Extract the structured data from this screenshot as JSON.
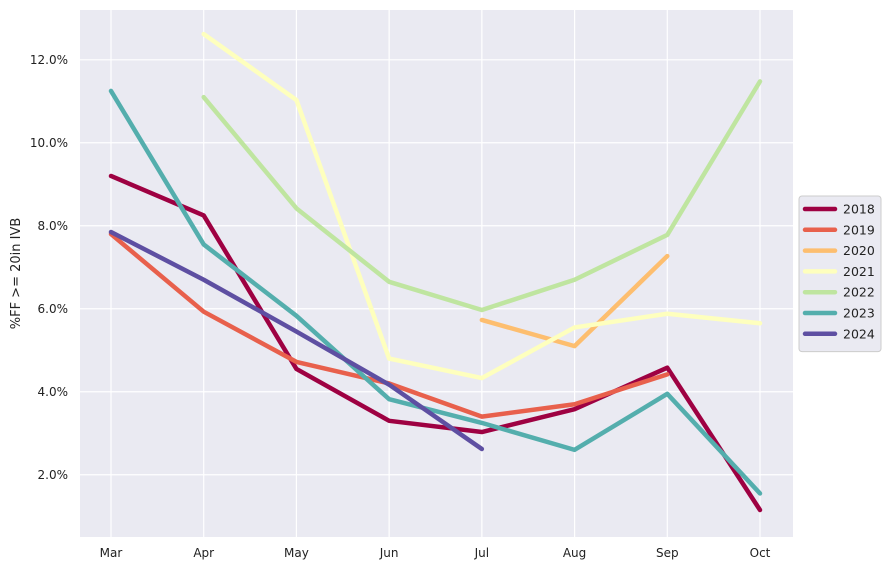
{
  "chart_data": {
    "type": "line",
    "title": "",
    "xlabel": "",
    "ylabel": "%FF >= 20in IVB",
    "categories": [
      "Mar",
      "Apr",
      "May",
      "Jun",
      "Jul",
      "Aug",
      "Sep",
      "Oct"
    ],
    "ylim": [
      0.5,
      13.2
    ],
    "yticks": [
      2.0,
      4.0,
      6.0,
      8.0,
      10.0,
      12.0
    ],
    "ytick_labels": [
      "2.0%",
      "4.0%",
      "6.0%",
      "8.0%",
      "10.0%",
      "12.0%"
    ],
    "grid": true,
    "legend_position": "right",
    "series": [
      {
        "name": "2018",
        "color": "#9e0142",
        "values": [
          9.2,
          8.25,
          4.55,
          3.3,
          3.03,
          3.58,
          4.58,
          1.15
        ]
      },
      {
        "name": "2019",
        "color": "#e8604c",
        "values": [
          7.8,
          5.93,
          4.72,
          4.2,
          3.4,
          3.7,
          4.42,
          null
        ]
      },
      {
        "name": "2020",
        "color": "#fdbe6f",
        "values": [
          null,
          null,
          null,
          null,
          5.73,
          5.1,
          7.27,
          null
        ]
      },
      {
        "name": "2021",
        "color": "#feffbe",
        "values": [
          null,
          12.62,
          11.03,
          4.8,
          4.33,
          5.55,
          5.88,
          5.65
        ]
      },
      {
        "name": "2022",
        "color": "#bfe5a0",
        "values": [
          null,
          11.1,
          8.42,
          6.65,
          5.97,
          6.7,
          7.78,
          11.48
        ]
      },
      {
        "name": "2023",
        "color": "#54aead",
        "values": [
          11.25,
          7.55,
          5.83,
          3.82,
          3.25,
          2.6,
          3.95,
          1.55
        ]
      },
      {
        "name": "2024",
        "color": "#5e4fa2",
        "values": [
          7.85,
          6.7,
          5.45,
          4.17,
          2.62,
          null,
          null,
          null
        ]
      }
    ]
  },
  "colors": {
    "plot_background": "#eaeaf2",
    "grid": "#ffffff"
  }
}
